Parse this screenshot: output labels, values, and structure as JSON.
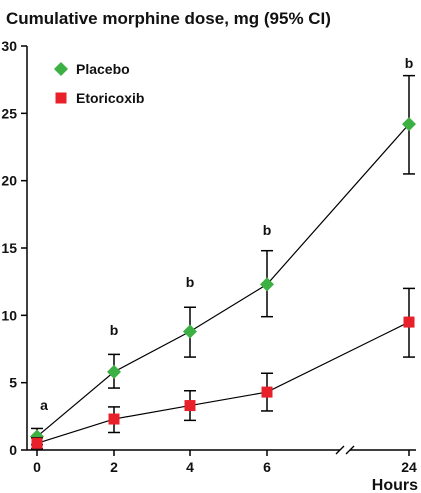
{
  "chart_data": {
    "type": "line",
    "title": "Cumulative morphine dose, mg (95% CI)",
    "xlabel": "Hours",
    "ylabel": "",
    "x": [
      0,
      2,
      4,
      6,
      24
    ],
    "x_tick_labels": [
      "0",
      "2",
      "4",
      "6",
      "24"
    ],
    "x_axis_break": "between 6 and 24",
    "ylim": [
      0,
      30
    ],
    "y_ticks": [
      0,
      5,
      10,
      15,
      20,
      25,
      30
    ],
    "grid": false,
    "legend_position": "top-left",
    "series": [
      {
        "name": "Placebo",
        "color": "#3cb043",
        "marker": "diamond",
        "values": [
          1.0,
          5.8,
          8.8,
          12.3,
          24.2
        ],
        "ci_lower": [
          0.4,
          4.6,
          6.9,
          9.9,
          20.5
        ],
        "ci_upper": [
          1.6,
          7.1,
          10.6,
          14.8,
          27.8
        ]
      },
      {
        "name": "Etoricoxib",
        "color": "#e8202a",
        "marker": "square",
        "values": [
          0.5,
          2.3,
          3.3,
          4.3,
          9.5
        ],
        "ci_lower": [
          0.1,
          1.3,
          2.2,
          2.9,
          6.9
        ],
        "ci_upper": [
          0.9,
          3.2,
          4.4,
          5.7,
          12.0
        ]
      }
    ],
    "annotations": [
      {
        "x": 0,
        "text": "a"
      },
      {
        "x": 2,
        "text": "b"
      },
      {
        "x": 4,
        "text": "b"
      },
      {
        "x": 6,
        "text": "b"
      },
      {
        "x": 24,
        "text": "b"
      }
    ]
  }
}
